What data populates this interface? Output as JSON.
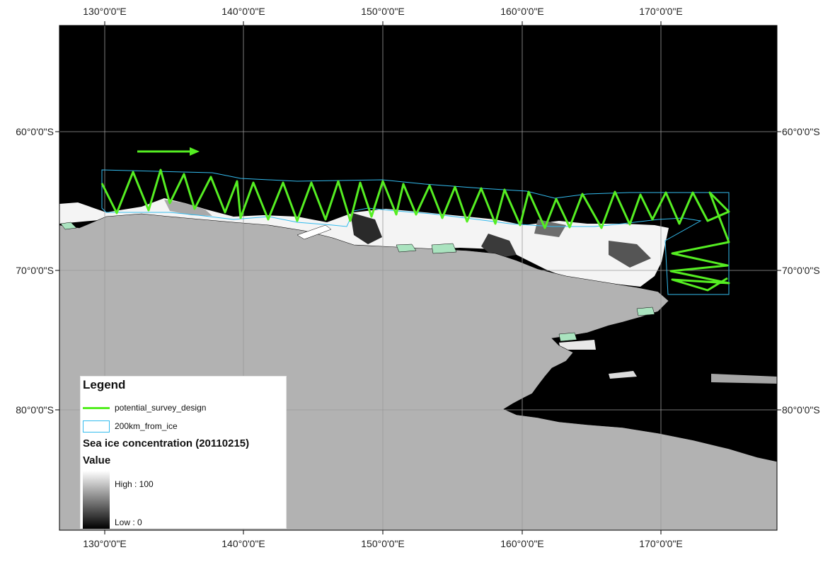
{
  "map": {
    "lon_ticks": [
      "130°0'0\"E",
      "140°0'0\"E",
      "150°0'0\"E",
      "160°0'0\"E",
      "170°0'0\"E"
    ],
    "lat_ticks": [
      "60°0'0\"S",
      "70°0'0\"S",
      "80°0'0\"S"
    ],
    "colors": {
      "ocean": "#000000",
      "land": "#b2b2b2",
      "sea_ice_high": "#ffffff",
      "sea_ice_low": "#000000",
      "ice_shelf": "#aae3bf",
      "survey_line": "#55ee22",
      "buffer_outline": "#33bbee",
      "graticule": "#9a9a9a"
    },
    "direction_arrow_icon": "right-arrow-icon"
  },
  "legend": {
    "title": "Legend",
    "survey_label": "potential_survey_design",
    "buffer_label": "200km_from_ice",
    "raster_title": "Sea ice concentration (20110215)",
    "value_label": "Value",
    "high_label": "High : 100",
    "low_label": "Low : 0"
  }
}
